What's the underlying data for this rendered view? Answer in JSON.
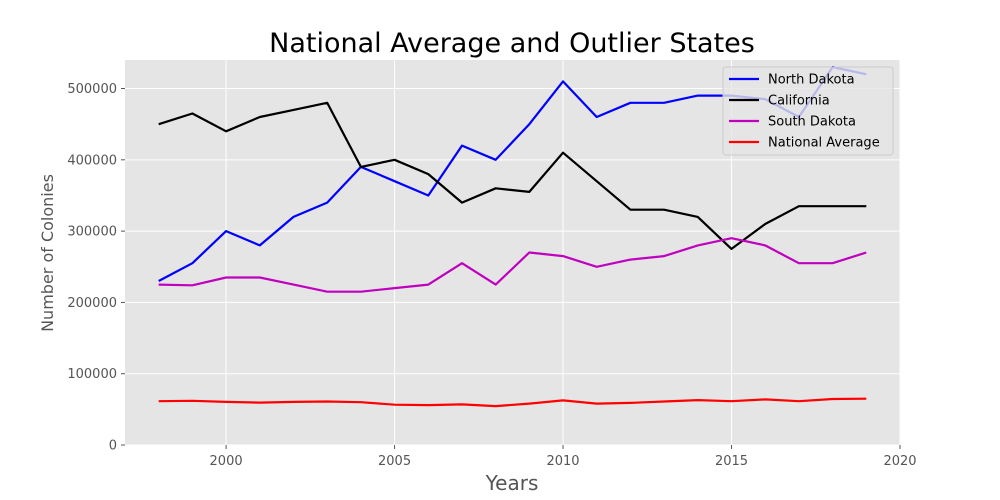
{
  "chart_data": {
    "type": "line",
    "title": "National Average and Outlier States",
    "xlabel": "Years",
    "ylabel": "Number of Colonies",
    "xlim": [
      1997.0,
      2020.0
    ],
    "ylim": [
      0,
      540000
    ],
    "xticks": [
      "2000",
      "2005",
      "2010",
      "2015",
      "2020"
    ],
    "yticks": [
      "0",
      "100000",
      "200000",
      "300000",
      "400000",
      "500000"
    ],
    "grid": true,
    "legend_position": "top-right",
    "x": [
      1998,
      1999,
      2000,
      2001,
      2002,
      2003,
      2004,
      2005,
      2006,
      2007,
      2008,
      2009,
      2010,
      2011,
      2012,
      2013,
      2014,
      2015,
      2016,
      2017,
      2018,
      2019
    ],
    "series": [
      {
        "name": "North Dakota",
        "color": "#0000ff",
        "values": [
          230000,
          255000,
          300000,
          280000,
          320000,
          340000,
          390000,
          370000,
          350000,
          420000,
          400000,
          450000,
          510000,
          460000,
          480000,
          480000,
          490000,
          490000,
          485000,
          460000,
          530000,
          520000
        ]
      },
      {
        "name": "California",
        "color": "#000000",
        "values": [
          450000,
          465000,
          440000,
          460000,
          470000,
          480000,
          390000,
          400000,
          380000,
          340000,
          360000,
          355000,
          410000,
          370000,
          330000,
          330000,
          320000,
          275000,
          310000,
          335000,
          335000,
          335000
        ]
      },
      {
        "name": "South Dakota",
        "color": "#bf00bf",
        "values": [
          225000,
          224000,
          235000,
          235000,
          225000,
          215000,
          215000,
          220000,
          225000,
          255000,
          225000,
          270000,
          265000,
          250000,
          260000,
          265000,
          280000,
          290000,
          280000,
          255000,
          255000,
          270000
        ]
      },
      {
        "name": "National Average",
        "color": "#ff0000",
        "values": [
          61500,
          62000,
          60500,
          59500,
          60500,
          61000,
          60000,
          56500,
          56000,
          57000,
          54500,
          58000,
          62500,
          58000,
          59000,
          61000,
          63000,
          61500,
          64000,
          61500,
          64500,
          65000
        ]
      }
    ]
  }
}
